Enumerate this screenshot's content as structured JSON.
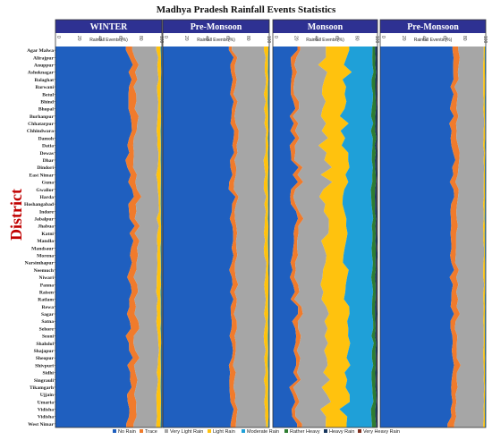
{
  "chart_data": {
    "type": "area",
    "stacked": true,
    "title": "Madhya Pradesh Rainfall Events Statistics",
    "ylabel": "District",
    "xlabel": "Rainfall Events (%)",
    "xlim": [
      0,
      100
    ],
    "xticks": [
      "0",
      "20",
      "40",
      "60",
      "80",
      "100"
    ],
    "categories": [
      "Agar Malwa",
      "Alirajpur",
      "Anuppur",
      "Ashoknagar",
      "Balaghat",
      "Barwani",
      "Betul",
      "Bhind",
      "Bhopal",
      "Burhanpur",
      "Chhatarpur",
      "Chhindwara",
      "Damoh",
      "Datia",
      "Dewas",
      "Dhar",
      "Dindori",
      "East Nimar",
      "Guna",
      "Gwalior",
      "Harda",
      "Hoshangabad",
      "Indore",
      "Jabalpur",
      "Jhabua",
      "Katni",
      "Mandla",
      "Mandsaur",
      "Morena",
      "Narsimhapur",
      "Neemuch",
      "Niwari",
      "Panna",
      "Raisen",
      "Ratlam",
      "Rewa",
      "Sagar",
      "Satna",
      "Sehore",
      "Seoni",
      "Shahdol",
      "Shajapur",
      "Sheopur",
      "Shivpuri",
      "Sidhi",
      "Singrauli",
      "Tikamgarh",
      "Ujjain",
      "Umaria",
      "Vidisha",
      "Vidisha",
      "West Nimar"
    ],
    "series_names": [
      "No Rain",
      "Trace",
      "Very Light Rain",
      "Light Rain",
      "Moderate Rain",
      "Rather Heavy",
      "Heavy Rain",
      "Very Heavy Rain"
    ],
    "colors": [
      "#1f5fbf",
      "#f07b2c",
      "#a6a6a6",
      "#ffc20e",
      "#1fa0d8",
      "#2e7d32",
      "#17365d",
      "#7f2f1f"
    ],
    "panels": [
      {
        "name": "WINTER",
        "base": [
          70,
          6,
          20,
          3,
          0.6,
          0.2,
          0.1,
          0.1
        ],
        "jitter": [
          5,
          2,
          4,
          1.5,
          0.3,
          0.1,
          0.05,
          0.05
        ]
      },
      {
        "name": "Pre-Monsoon",
        "base": [
          65,
          4,
          27,
          3,
          0.6,
          0.2,
          0.1,
          0.1
        ],
        "jitter": [
          4,
          1.5,
          3,
          1.2,
          0.3,
          0.1,
          0.05,
          0.05
        ]
      },
      {
        "name": "Monsoon",
        "base": [
          20,
          4,
          26,
          20,
          25,
          3,
          1.5,
          0.5
        ],
        "jitter": [
          5,
          1.5,
          5,
          5,
          4,
          1,
          0.6,
          0.2
        ]
      },
      {
        "name": "Pre-Monsoon",
        "base": [
          68,
          5,
          25,
          1.2,
          0.5,
          0.1,
          0.1,
          0.1
        ],
        "jitter": [
          4,
          1.5,
          3,
          0.5,
          0.2,
          0.05,
          0.05,
          0.05
        ]
      }
    ],
    "grid": false,
    "legend_position": "bottom"
  }
}
